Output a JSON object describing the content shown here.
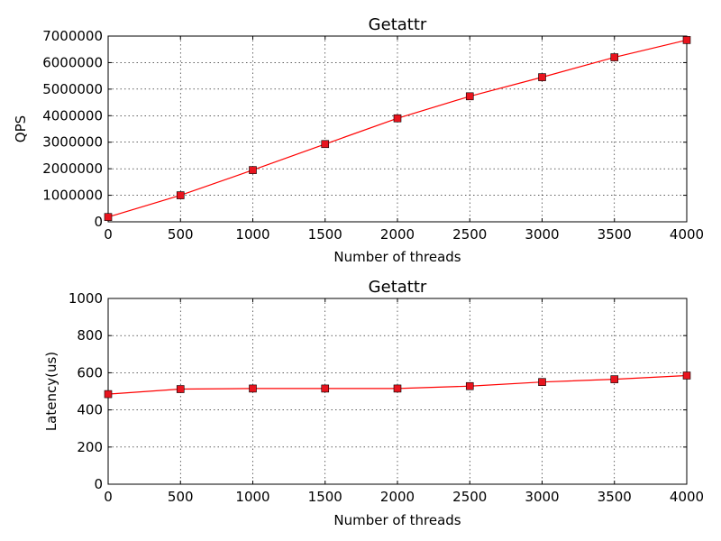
{
  "chart_data": [
    {
      "type": "line",
      "title": "Getattr",
      "xlabel": "Number of threads",
      "ylabel": "QPS",
      "xlim": [
        0,
        4000
      ],
      "ylim": [
        0,
        7000000
      ],
      "xticks": [
        0,
        500,
        1000,
        1500,
        2000,
        2500,
        3000,
        3500,
        4000
      ],
      "yticks": [
        0,
        1000000,
        2000000,
        3000000,
        4000000,
        5000000,
        6000000,
        7000000
      ],
      "xtick_labels": [
        "0",
        "500",
        "1000",
        "1500",
        "2000",
        "2500",
        "3000",
        "3500",
        "4000"
      ],
      "ytick_labels": [
        "0",
        "1000000",
        "2000000",
        "3000000",
        "4000000",
        "5000000",
        "6000000",
        "7000000"
      ],
      "grid": true,
      "marker": "square",
      "line_color": "#ff0000",
      "marker_color": "#e8141e",
      "series": [
        {
          "x": [
            0,
            500,
            1000,
            1500,
            2000,
            2500,
            3000,
            3500,
            4000
          ],
          "values": [
            180000,
            1000000,
            1950000,
            2930000,
            3900000,
            4730000,
            5450000,
            6200000,
            6850000
          ]
        }
      ]
    },
    {
      "type": "line",
      "title": "Getattr",
      "xlabel": "Number of threads",
      "ylabel": "Latency(us)",
      "xlim": [
        0,
        4000
      ],
      "ylim": [
        0,
        1000
      ],
      "xticks": [
        0,
        500,
        1000,
        1500,
        2000,
        2500,
        3000,
        3500,
        4000
      ],
      "yticks": [
        0,
        200,
        400,
        600,
        800,
        1000
      ],
      "xtick_labels": [
        "0",
        "500",
        "1000",
        "1500",
        "2000",
        "2500",
        "3000",
        "3500",
        "4000"
      ],
      "ytick_labels": [
        "0",
        "200",
        "400",
        "600",
        "800",
        "1000"
      ],
      "grid": true,
      "marker": "square",
      "line_color": "#ff0000",
      "marker_color": "#e8141e",
      "series": [
        {
          "x": [
            0,
            500,
            1000,
            1500,
            2000,
            2500,
            3000,
            3500,
            4000
          ],
          "values": [
            485,
            512,
            515,
            515,
            515,
            528,
            550,
            565,
            585
          ]
        }
      ]
    }
  ]
}
